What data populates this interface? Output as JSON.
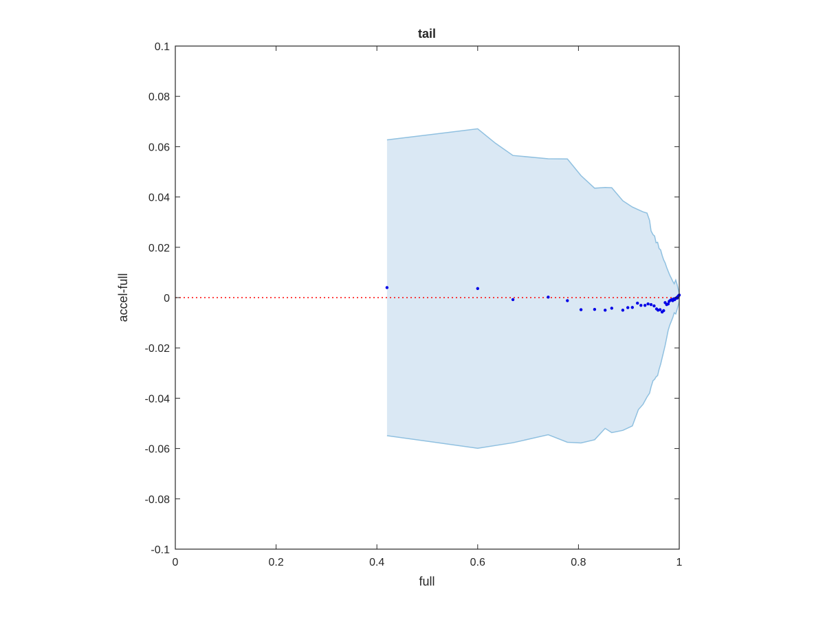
{
  "chart_data": {
    "type": "scatter",
    "title": "tail",
    "xlabel": "full",
    "ylabel": "accel-full",
    "xlim": [
      0,
      1
    ],
    "ylim": [
      -0.1,
      0.1
    ],
    "x_ticks": [
      0,
      0.2,
      0.4,
      0.6,
      0.8,
      1
    ],
    "x_tick_labels": [
      "0",
      "0.2",
      "0.4",
      "0.6",
      "0.8",
      "1"
    ],
    "y_ticks": [
      -0.1,
      -0.08,
      -0.06,
      -0.04,
      -0.02,
      0,
      0.02,
      0.04,
      0.06,
      0.08,
      0.1
    ],
    "y_tick_labels": [
      "-0.1",
      "-0.08",
      "-0.06",
      "-0.04",
      "-0.02",
      "0",
      "0.02",
      "0.04",
      "0.06",
      "0.08",
      "0.1"
    ],
    "grid": false,
    "reference_line": {
      "y": 0,
      "style": "dotted",
      "color": "#ff0000"
    },
    "band": {
      "fill": "#dae8f4",
      "edge": "#8fc0e0",
      "upper": [
        [
          0.42,
          0.0627
        ],
        [
          0.6,
          0.0671
        ],
        [
          0.635,
          0.0614
        ],
        [
          0.67,
          0.0565
        ],
        [
          0.74,
          0.0552
        ],
        [
          0.778,
          0.0551
        ],
        [
          0.805,
          0.0485
        ],
        [
          0.832,
          0.0435
        ],
        [
          0.853,
          0.0438
        ],
        [
          0.866,
          0.0437
        ],
        [
          0.888,
          0.0385
        ],
        [
          0.907,
          0.036
        ],
        [
          0.928,
          0.0341
        ],
        [
          0.936,
          0.0336
        ],
        [
          0.941,
          0.0307
        ],
        [
          0.944,
          0.0265
        ],
        [
          0.948,
          0.025
        ],
        [
          0.951,
          0.0245
        ],
        [
          0.954,
          0.0218
        ],
        [
          0.957,
          0.022
        ],
        [
          0.96,
          0.0195
        ],
        [
          0.963,
          0.019
        ],
        [
          0.966,
          0.0168
        ],
        [
          0.969,
          0.015
        ],
        [
          0.972,
          0.0138
        ],
        [
          0.975,
          0.012
        ],
        [
          0.978,
          0.0105
        ],
        [
          0.981,
          0.009
        ],
        [
          0.984,
          0.0078
        ],
        [
          0.987,
          0.0065
        ],
        [
          0.99,
          0.0055
        ],
        [
          0.993,
          0.007
        ],
        [
          0.996,
          0.005
        ],
        [
          1.0,
          0.0015
        ]
      ],
      "lower": [
        [
          1.0,
          -0.0015
        ],
        [
          0.996,
          -0.0045
        ],
        [
          0.993,
          -0.0065
        ],
        [
          0.99,
          -0.006
        ],
        [
          0.987,
          -0.008
        ],
        [
          0.984,
          -0.0095
        ],
        [
          0.981,
          -0.011
        ],
        [
          0.978,
          -0.013
        ],
        [
          0.975,
          -0.016
        ],
        [
          0.972,
          -0.019
        ],
        [
          0.969,
          -0.0215
        ],
        [
          0.966,
          -0.024
        ],
        [
          0.963,
          -0.0265
        ],
        [
          0.96,
          -0.0285
        ],
        [
          0.957,
          -0.031
        ],
        [
          0.954,
          -0.0315
        ],
        [
          0.951,
          -0.0325
        ],
        [
          0.948,
          -0.033
        ],
        [
          0.944,
          -0.0355
        ],
        [
          0.941,
          -0.038
        ],
        [
          0.936,
          -0.0395
        ],
        [
          0.928,
          -0.0425
        ],
        [
          0.919,
          -0.0445
        ],
        [
          0.907,
          -0.051
        ],
        [
          0.888,
          -0.0528
        ],
        [
          0.866,
          -0.0537
        ],
        [
          0.853,
          -0.052
        ],
        [
          0.832,
          -0.0565
        ],
        [
          0.805,
          -0.0578
        ],
        [
          0.778,
          -0.0575
        ],
        [
          0.74,
          -0.0545
        ],
        [
          0.67,
          -0.0577
        ],
        [
          0.6,
          -0.0599
        ],
        [
          0.42,
          -0.0549
        ]
      ]
    },
    "series": [
      {
        "color": "#0000e6",
        "points": [
          [
            0.42,
            0.004
          ],
          [
            0.6,
            0.0036
          ],
          [
            0.67,
            -0.0008
          ],
          [
            0.74,
            0.0002
          ],
          [
            0.778,
            -0.0012
          ],
          [
            0.805,
            -0.0048
          ],
          [
            0.832,
            -0.0047
          ],
          [
            0.853,
            -0.005
          ],
          [
            0.866,
            -0.0042
          ],
          [
            0.888,
            -0.005
          ],
          [
            0.898,
            -0.004
          ],
          [
            0.907,
            -0.0039
          ],
          [
            0.917,
            -0.0022
          ],
          [
            0.924,
            -0.0031
          ],
          [
            0.932,
            -0.0031
          ],
          [
            0.938,
            -0.0025
          ],
          [
            0.944,
            -0.0028
          ],
          [
            0.95,
            -0.0033
          ],
          [
            0.955,
            -0.0045
          ],
          [
            0.958,
            -0.005
          ],
          [
            0.962,
            -0.0048
          ],
          [
            0.966,
            -0.0057
          ],
          [
            0.969,
            -0.0052
          ],
          [
            0.972,
            -0.002
          ],
          [
            0.975,
            -0.0028
          ],
          [
            0.978,
            -0.0025
          ],
          [
            0.98,
            -0.0015
          ],
          [
            0.983,
            -0.001
          ],
          [
            0.985,
            -0.0008
          ],
          [
            0.987,
            -0.0012
          ],
          [
            0.989,
            -0.0005
          ],
          [
            0.991,
            -0.0008
          ],
          [
            0.993,
            -0.0003
          ],
          [
            0.995,
            0.0
          ],
          [
            0.996,
            -0.0002
          ],
          [
            0.997,
            0.0003
          ],
          [
            0.998,
            0.0005
          ],
          [
            0.999,
            0.0008
          ],
          [
            1.0,
            0.001
          ]
        ]
      }
    ]
  }
}
